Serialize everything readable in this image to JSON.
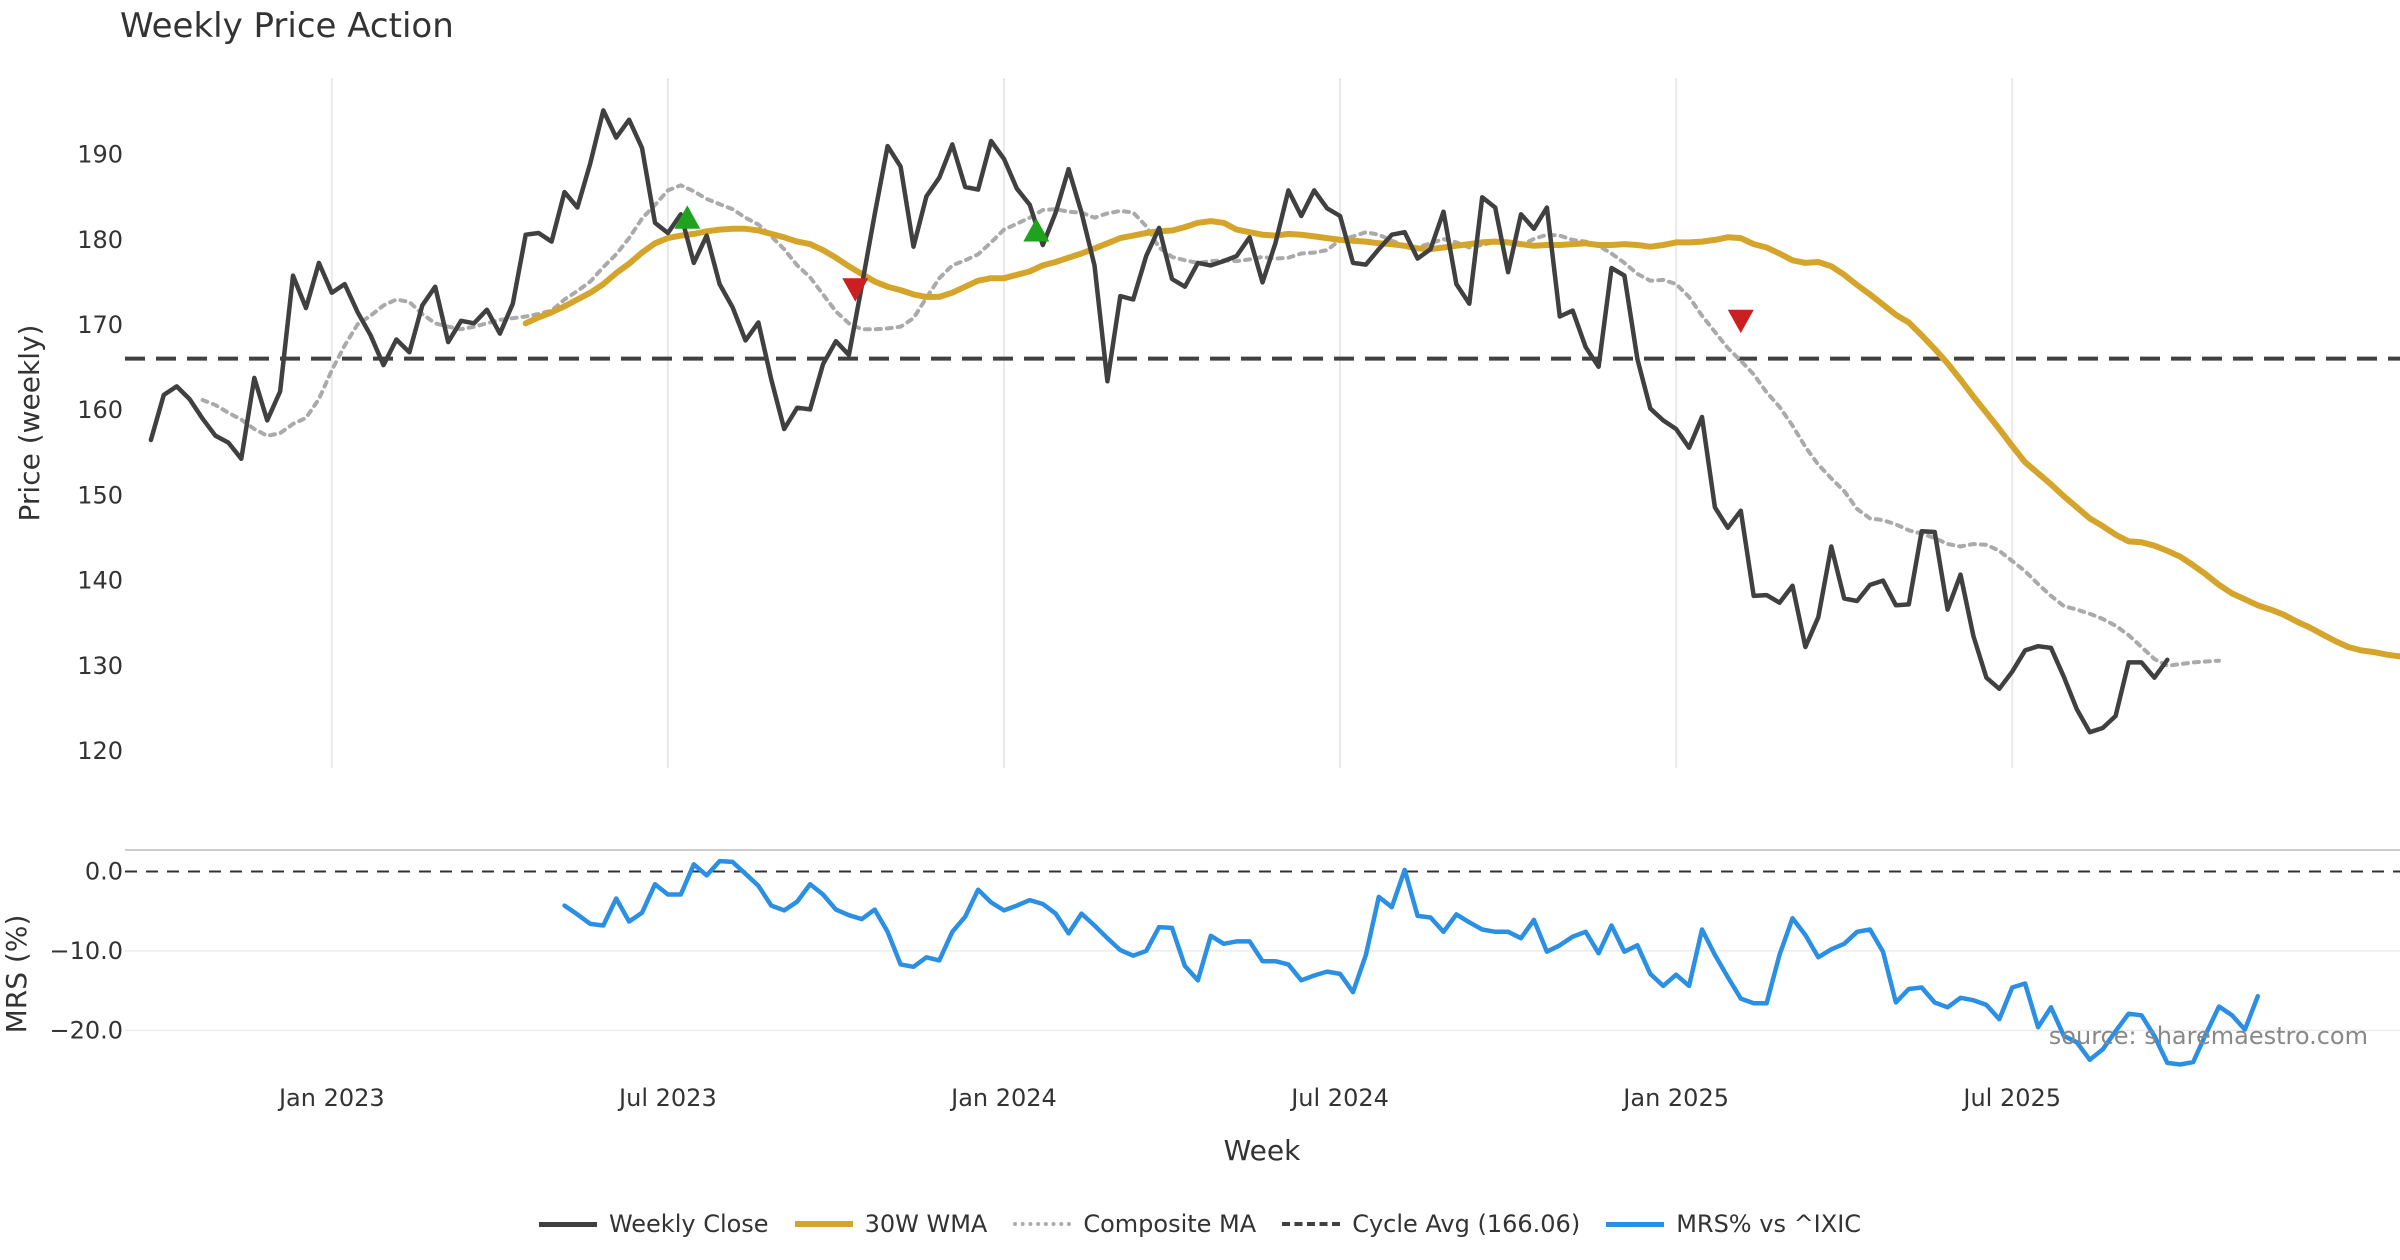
{
  "colors": {
    "weekly_close": "#404040",
    "wma": "#D4A52A",
    "composite_ma": "#AAAAAA",
    "cycle_avg": "#404040",
    "mrs": "#2B8FE3",
    "buy_marker": "#1FA31F",
    "sell_marker": "#CC1F1F"
  },
  "chart_data": [
    {
      "type": "line",
      "title": "Weekly Price Action",
      "xlabel": "Week",
      "ylabel": "Price (weekly)",
      "ylim": [
        118,
        199
      ],
      "xlim": [
        -16,
        160
      ],
      "yticks": [
        120,
        130,
        140,
        150,
        160,
        170,
        180,
        190
      ],
      "x_ticks": [
        {
          "week": 0,
          "label": "Jan 2023"
        },
        {
          "week": 26,
          "label": "Jul 2023"
        },
        {
          "week": 52,
          "label": "Jan 2024"
        },
        {
          "week": 78,
          "label": "Jul 2024"
        },
        {
          "week": 104,
          "label": "Jan 2025"
        },
        {
          "week": 130,
          "label": "Jul 2025"
        }
      ],
      "series": [
        {
          "name": "Weekly Close",
          "x_start": -14,
          "values": [
            156.5,
            161.8,
            162.8,
            161.3,
            159,
            157,
            156.2,
            154.3,
            163.8,
            158.8,
            162.2,
            175.8,
            172,
            177.3,
            173.8,
            174.8,
            171.5,
            168.8,
            165.3,
            168.3,
            166.8,
            172.3,
            174.5,
            168,
            170.5,
            170.2,
            171.8,
            169,
            172.5,
            180.6,
            180.8,
            179.8,
            185.6,
            183.8,
            189,
            195.2,
            192,
            194.1,
            190.8,
            182,
            180.8,
            183,
            177.3,
            180.5,
            174.8,
            172.1,
            168.2,
            170.3,
            163.6,
            157.8,
            160.3,
            160.1,
            165.4,
            168.1,
            166.5,
            174.6,
            183,
            191,
            188.6,
            179.2,
            185.1,
            187.3,
            191.2,
            186.2,
            185.9,
            191.6,
            189.5,
            186,
            184.1,
            179.4,
            183.2,
            188.3,
            183.2,
            177,
            163.4,
            173.4,
            173,
            178.1,
            181.4,
            175.4,
            174.5,
            177.3,
            177,
            177.5,
            178.1,
            180.3,
            175,
            179.6,
            185.8,
            182.8,
            185.8,
            183.7,
            182.8,
            177.3,
            177.1,
            178.9,
            180.6,
            180.9,
            177.8,
            178.9,
            183.3,
            174.8,
            172.5,
            185,
            183.8,
            176.2,
            183,
            181.3,
            183.8,
            171,
            171.7,
            167.4,
            165.1,
            176.7,
            175.8,
            166,
            160.2,
            158.8,
            157.8,
            155.6,
            159.2,
            148.6,
            146.2,
            148.2,
            138.2,
            138.3,
            137.4,
            139.4,
            132.2,
            135.7,
            144,
            137.9,
            137.6,
            139.5,
            140,
            137.1,
            137.2,
            145.8,
            145.7,
            136.6,
            140.7,
            133.5,
            128.6,
            127.3,
            129.3,
            131.8,
            132.3,
            132.1,
            128.7,
            124.9,
            122.2,
            122.7,
            124.1,
            130.4,
            130.4,
            128.6,
            130.7
          ]
        },
        {
          "name": "30W WMA",
          "x_start": 15,
          "values": [
            170.2,
            170.9,
            171.5,
            172.2,
            173,
            173.8,
            174.8,
            176.1,
            177.2,
            178.5,
            179.6,
            180.2,
            180.5,
            180.7,
            181,
            181.2,
            181.3,
            181.3,
            181.1,
            180.7,
            180.3,
            179.8,
            179.5,
            178.8,
            177.9,
            176.9,
            176,
            175.1,
            174.5,
            174.1,
            173.6,
            173.3,
            173.3,
            173.8,
            174.5,
            175.2,
            175.5,
            175.5,
            175.9,
            176.3,
            177,
            177.4,
            177.9,
            178.4,
            179,
            179.6,
            180.2,
            180.5,
            180.8,
            181,
            181.1,
            181.5,
            182,
            182.2,
            182,
            181.2,
            180.9,
            180.6,
            180.5,
            180.7,
            180.6,
            180.4,
            180.2,
            180,
            179.9,
            179.8,
            179.6,
            179.5,
            179.3,
            179,
            178.9,
            179.1,
            179.3,
            179.5,
            179.7,
            179.8,
            179.7,
            179.5,
            179.3,
            179.4,
            179.4,
            179.5,
            179.6,
            179.4,
            179.4,
            179.5,
            179.4,
            179.2,
            179.4,
            179.7,
            179.7,
            179.8,
            180,
            180.3,
            180.2,
            179.5,
            179.1,
            178.4,
            177.6,
            177.3,
            177.4,
            176.9,
            175.9,
            174.7,
            173.6,
            172.4,
            171.2,
            170.3,
            168.8,
            167.2,
            165.5,
            163.6,
            161.6,
            159.7,
            157.8,
            155.8,
            153.9,
            152.6,
            151.3,
            149.9,
            148.6,
            147.3,
            146.4,
            145.4,
            144.6,
            144.5,
            144.1,
            143.5,
            142.8,
            141.8,
            140.7,
            139.5,
            138.5,
            137.8,
            137.1,
            136.6,
            136,
            135.2,
            134.5,
            133.7,
            132.9,
            132.2,
            131.8,
            131.6,
            131.3,
            131.1,
            130.9
          ]
        },
        {
          "name": "Composite MA",
          "x_start": -10,
          "values": [
            161.2,
            160.6,
            159.7,
            158.9,
            157.8,
            157,
            157.3,
            158.4,
            159.1,
            161.3,
            164.7,
            167.6,
            170.1,
            171.1,
            172.3,
            173,
            172.7,
            171.3,
            170.2,
            169.8,
            169.5,
            169.8,
            170.2,
            170.6,
            170.8,
            171,
            171.3,
            171.7,
            173,
            174,
            175.1,
            176.8,
            178.3,
            180.2,
            182.5,
            184.1,
            185.8,
            186.4,
            185.7,
            184.8,
            184.2,
            183.6,
            182.6,
            181.8,
            180.4,
            178.9,
            177,
            175.6,
            173.6,
            171.6,
            170.2,
            169.5,
            169.5,
            169.6,
            169.8,
            170.8,
            173.2,
            175.5,
            177,
            177.6,
            178.3,
            179.7,
            181.2,
            181.9,
            182.6,
            183.5,
            183.6,
            183.3,
            183.2,
            182.6,
            183.1,
            183.4,
            183.2,
            181.6,
            179.1,
            178,
            177.6,
            177.3,
            177.5,
            177.6,
            177.5,
            177.7,
            178,
            177.8,
            177.9,
            178.4,
            178.5,
            178.8,
            180,
            180.4,
            180.9,
            180.6,
            179.9,
            179.3,
            179.1,
            179.6,
            180.1,
            179.7,
            179.1,
            179.4,
            179.8,
            179.6,
            179.4,
            180.1,
            180.6,
            180.5,
            180,
            179.8,
            179.3,
            178.4,
            177.3,
            176,
            175.2,
            175.3,
            174.8,
            173.3,
            171.1,
            169.2,
            167.3,
            165.8,
            164.2,
            162.1,
            160.4,
            158.2,
            155.7,
            153.6,
            152,
            150.5,
            148.4,
            147.3,
            147.1,
            146.6,
            145.9,
            145.5,
            145,
            144.3,
            144,
            144.3,
            144.2,
            143.5,
            142.3,
            141.1,
            139.6,
            138.2,
            137,
            136.6,
            136.1,
            135.5,
            134.7,
            133.6,
            132.2,
            130.8,
            130,
            130.2,
            130.4,
            130.5,
            130.6
          ]
        },
        {
          "name": "Cycle Avg (166.06)",
          "constant": 166.06
        }
      ],
      "markers": [
        {
          "type": "buy",
          "x": 27.5,
          "y": 182.6
        },
        {
          "type": "sell",
          "x": 40.5,
          "y": 174.2
        },
        {
          "type": "buy",
          "x": 54.5,
          "y": 181.1
        },
        {
          "type": "sell",
          "x": 109,
          "y": 170.5
        }
      ],
      "annotation": "source: sharemaestro.com"
    },
    {
      "type": "line",
      "ylabel": "MRS (%)",
      "ylim": [
        -26.5,
        2.7
      ],
      "yticks": [
        0,
        -10,
        -20
      ],
      "ytick_labels": [
        "0.0",
        "−10.0",
        "−20.0"
      ],
      "xlim": [
        -16,
        160
      ],
      "series": [
        {
          "name": "MRS% vs ^IXIC",
          "x_start": 18,
          "values": [
            -4.3,
            -5.4,
            -6.6,
            -6.8,
            -3.4,
            -6.3,
            -5.2,
            -1.6,
            -2.9,
            -2.9,
            0.9,
            -0.5,
            1.3,
            1.2,
            -0.3,
            -1.8,
            -4.3,
            -4.9,
            -3.8,
            -1.6,
            -2.9,
            -4.8,
            -5.5,
            -6,
            -4.8,
            -7.6,
            -11.7,
            -12,
            -10.8,
            -11.2,
            -7.6,
            -5.7,
            -2.3,
            -3.9,
            -4.9,
            -4.3,
            -3.6,
            -4.1,
            -5.3,
            -7.8,
            -5.3,
            -6.8,
            -8.4,
            -9.9,
            -10.6,
            -10,
            -7,
            -7.1,
            -11.9,
            -13.7,
            -8.1,
            -9.1,
            -8.8,
            -8.8,
            -11.3,
            -11.3,
            -11.7,
            -13.7,
            -13.1,
            -12.6,
            -12.9,
            -15.2,
            -10.5,
            -3.2,
            -4.5,
            0.2,
            -5.6,
            -5.8,
            -7.6,
            -5.4,
            -6.4,
            -7.3,
            -7.6,
            -7.6,
            -8.4,
            -6.1,
            -10.1,
            -9.3,
            -8.2,
            -7.6,
            -10.3,
            -6.8,
            -10.1,
            -9.3,
            -12.9,
            -14.4,
            -13,
            -14.4,
            -7.3,
            -10.5,
            -13.3,
            -16,
            -16.6,
            -16.6,
            -10.5,
            -5.9,
            -8,
            -10.8,
            -9.8,
            -9.1,
            -7.6,
            -7.3,
            -10.1,
            -16.5,
            -14.8,
            -14.6,
            -16.5,
            -17.1,
            -15.9,
            -16.2,
            -16.8,
            -18.6,
            -14.6,
            -14.1,
            -19.6,
            -17.1,
            -20.7,
            -21.5,
            -23.7,
            -22.4,
            -20.1,
            -17.9,
            -18.1,
            -20.7,
            -24.1,
            -24.3,
            -24,
            -20.4,
            -17,
            -18.1,
            -19.9,
            -15.7
          ]
        }
      ]
    }
  ],
  "legend": [
    {
      "label": "Weekly Close",
      "color": "#404040",
      "style": "solid"
    },
    {
      "label": "30W WMA",
      "color": "#D4A52A",
      "style": "solid"
    },
    {
      "label": "Composite MA",
      "color": "#AAAAAA",
      "style": "dotted"
    },
    {
      "label": "Cycle Avg (166.06)",
      "color": "#404040",
      "style": "dashed"
    },
    {
      "label": "MRS% vs ^IXIC",
      "color": "#2B8FE3",
      "style": "solid"
    }
  ]
}
